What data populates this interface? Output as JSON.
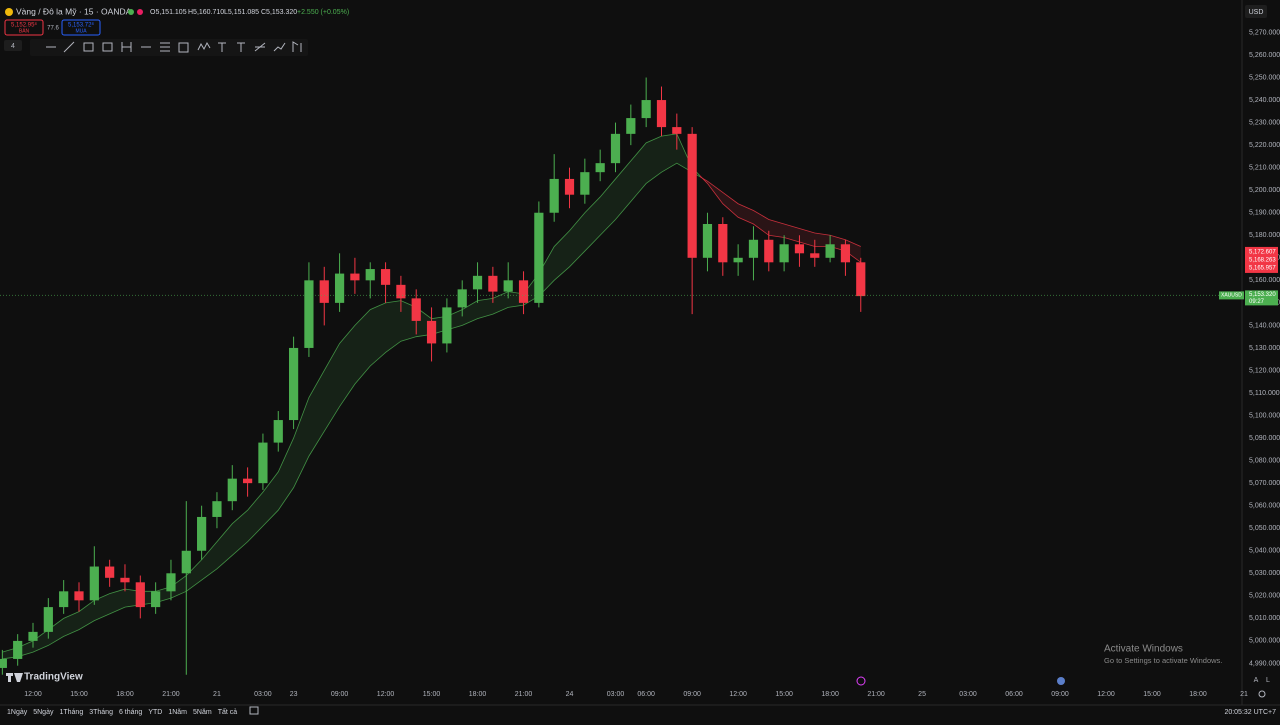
{
  "header": {
    "symbol": "Vàng / Đô la Mỹ · 15 · OANDA",
    "open": "O5,151.105",
    "high": "H5,160.710",
    "low": "L5,151.085",
    "close": "C5,153.320",
    "change": "+2.550 (+0.05%)",
    "sell_price": "5,152.95⁸",
    "sell_label": "BÁN",
    "spread": "77.6",
    "buy_price": "5,153.72⁸",
    "buy_label": "MUA",
    "indicators_count": "4",
    "currency": "USD"
  },
  "chart_data": {
    "type": "candlestick",
    "up_color": "#4caf50",
    "down_color": "#f23645",
    "band_up_color": "#4caf50",
    "band_down_color": "#f23645",
    "x": [
      -2,
      -1,
      0,
      1,
      2,
      3,
      4,
      5,
      6,
      7,
      8,
      9,
      10,
      11,
      12,
      13,
      14,
      15,
      16,
      17,
      18,
      19,
      20,
      21,
      22,
      23,
      24,
      25,
      26,
      27,
      28,
      29,
      30,
      31,
      32,
      33,
      34,
      35,
      36,
      37,
      38,
      39,
      40,
      41,
      42,
      43,
      44,
      45,
      46,
      47,
      48,
      49,
      50,
      51,
      52,
      53,
      54
    ],
    "candles": [
      [
        4988,
        4996,
        4985,
        4992
      ],
      [
        4992,
        5003,
        4989,
        5000
      ],
      [
        5000,
        5008,
        4997,
        5004
      ],
      [
        5004,
        5019,
        5001,
        5015
      ],
      [
        5015,
        5027,
        5012,
        5022
      ],
      [
        5022,
        5026,
        5013,
        5018
      ],
      [
        5018,
        5042,
        5016,
        5033
      ],
      [
        5033,
        5036,
        5024,
        5028
      ],
      [
        5028,
        5034,
        5022,
        5026
      ],
      [
        5026,
        5029,
        5010,
        5015
      ],
      [
        5015,
        5026,
        5012,
        5022
      ],
      [
        5022,
        5036,
        5018,
        5030
      ],
      [
        5030,
        5062,
        4985,
        5040
      ],
      [
        5040,
        5060,
        5036,
        5055
      ],
      [
        5055,
        5066,
        5050,
        5062
      ],
      [
        5062,
        5078,
        5058,
        5072
      ],
      [
        5072,
        5077,
        5064,
        5070
      ],
      [
        5070,
        5092,
        5067,
        5088
      ],
      [
        5088,
        5102,
        5084,
        5098
      ],
      [
        5098,
        5135,
        5094,
        5130
      ],
      [
        5130,
        5168,
        5126,
        5160
      ],
      [
        5160,
        5166,
        5140,
        5150
      ],
      [
        5150,
        5172,
        5146,
        5163
      ],
      [
        5163,
        5170,
        5154,
        5160
      ],
      [
        5160,
        5168,
        5152,
        5165
      ],
      [
        5165,
        5168,
        5150,
        5158
      ],
      [
        5158,
        5162,
        5146,
        5152
      ],
      [
        5152,
        5156,
        5136,
        5142
      ],
      [
        5142,
        5148,
        5124,
        5132
      ],
      [
        5132,
        5152,
        5128,
        5148
      ],
      [
        5148,
        5160,
        5144,
        5156
      ],
      [
        5156,
        5168,
        5150,
        5162
      ],
      [
        5162,
        5166,
        5150,
        5155
      ],
      [
        5155,
        5168,
        5152,
        5160
      ],
      [
        5160,
        5164,
        5145,
        5150
      ],
      [
        5150,
        5195,
        5148,
        5190
      ],
      [
        5190,
        5216,
        5186,
        5205
      ],
      [
        5205,
        5210,
        5192,
        5198
      ],
      [
        5198,
        5214,
        5194,
        5208
      ],
      [
        5208,
        5218,
        5204,
        5212
      ],
      [
        5212,
        5230,
        5208,
        5225
      ],
      [
        5225,
        5238,
        5220,
        5232
      ],
      [
        5232,
        5250,
        5228,
        5240
      ],
      [
        5240,
        5246,
        5224,
        5228
      ],
      [
        5228,
        5234,
        5218,
        5225
      ],
      [
        5225,
        5228,
        5145,
        5170
      ],
      [
        5170,
        5190,
        5164,
        5185
      ],
      [
        5185,
        5188,
        5162,
        5168
      ],
      [
        5168,
        5176,
        5162,
        5170
      ],
      [
        5170,
        5184,
        5160,
        5178
      ],
      [
        5178,
        5182,
        5164,
        5168
      ],
      [
        5168,
        5180,
        5164,
        5176
      ],
      [
        5176,
        5180,
        5166,
        5172
      ],
      [
        5172,
        5178,
        5166,
        5170
      ],
      [
        5170,
        5180,
        5168,
        5176
      ],
      [
        5176,
        5178,
        5162,
        5168
      ],
      [
        5168,
        5170,
        5146,
        5153
      ]
    ],
    "ema_fast": [
      4995,
      4997,
      5000,
      5005,
      5010,
      5013,
      5018,
      5021,
      5023,
      5022,
      5022,
      5024,
      5029,
      5036,
      5044,
      5052,
      5058,
      5066,
      5075,
      5090,
      5108,
      5120,
      5132,
      5140,
      5147,
      5150,
      5151,
      5148,
      5143,
      5144,
      5147,
      5151,
      5152,
      5155,
      5154,
      5163,
      5175,
      5182,
      5190,
      5197,
      5205,
      5213,
      5221,
      5224,
      5225,
      5210,
      5203,
      5194,
      5188,
      5185,
      5180,
      5179,
      5177,
      5175,
      5175,
      5173,
      5168
    ],
    "ema_slow": [
      4992,
      4993,
      4995,
      4998,
      5002,
      5005,
      5009,
      5012,
      5015,
      5016,
      5017,
      5019,
      5022,
      5027,
      5032,
      5038,
      5044,
      5051,
      5058,
      5068,
      5082,
      5093,
      5104,
      5114,
      5122,
      5128,
      5133,
      5135,
      5136,
      5138,
      5140,
      5143,
      5145,
      5148,
      5149,
      5153,
      5160,
      5166,
      5173,
      5180,
      5187,
      5195,
      5203,
      5208,
      5212,
      5208,
      5204,
      5199,
      5194,
      5191,
      5187,
      5185,
      5183,
      5181,
      5180,
      5178,
      5175
    ],
    "xlim": [
      -2.153,
      78.74
    ],
    "ylim": [
      4986.2,
      5277.3
    ],
    "xticks": [
      {
        "value": 0,
        "label": "12:00"
      },
      {
        "value": 3,
        "label": "15:00"
      },
      {
        "value": 6,
        "label": "18:00"
      },
      {
        "value": 9,
        "label": "21:00"
      },
      {
        "value": 12,
        "label": "21"
      },
      {
        "value": 15,
        "label": "03:00"
      },
      {
        "value": 17,
        "label": "23"
      },
      {
        "value": 20,
        "label": "09:00"
      },
      {
        "value": 23,
        "label": "12:00"
      },
      {
        "value": 26,
        "label": "15:00"
      },
      {
        "value": 29,
        "label": "18:00"
      },
      {
        "value": 32,
        "label": "21:00"
      },
      {
        "value": 35,
        "label": "24"
      },
      {
        "value": 38,
        "label": "03:00"
      },
      {
        "value": 40,
        "label": "06:00"
      },
      {
        "value": 43,
        "label": "09:00"
      },
      {
        "value": 46,
        "label": "12:00"
      },
      {
        "value": 49,
        "label": "15:00"
      },
      {
        "value": 52,
        "label": "18:00"
      },
      {
        "value": 55,
        "label": "21:00"
      },
      {
        "value": 58,
        "label": "25"
      },
      {
        "value": 61,
        "label": "03:00"
      },
      {
        "value": 64,
        "label": "06:00"
      },
      {
        "value": 67,
        "label": "09:00"
      },
      {
        "value": 70,
        "label": "12:00"
      },
      {
        "value": 73,
        "label": "15:00"
      },
      {
        "value": 76,
        "label": "18:00"
      },
      {
        "value": 79,
        "label": "21"
      }
    ],
    "yticks": [
      {
        "value": 5270,
        "label": "5,270.000"
      },
      {
        "value": 5260,
        "label": "5,260.000"
      },
      {
        "value": 5250,
        "label": "5,250.000"
      },
      {
        "value": 5240,
        "label": "5,240.000"
      },
      {
        "value": 5230,
        "label": "5,230.000"
      },
      {
        "value": 5220,
        "label": "5,220.000"
      },
      {
        "value": 5210,
        "label": "5,210.000"
      },
      {
        "value": 5200,
        "label": "5,200.000"
      },
      {
        "value": 5190,
        "label": "5,190.000"
      },
      {
        "value": 5180,
        "label": "5,180.000"
      },
      {
        "value": 5170,
        "label": "5,170.000"
      },
      {
        "value": 5160,
        "label": "5,160.000"
      },
      {
        "value": 5150,
        "label": "5,150.000"
      },
      {
        "value": 5140,
        "label": "5,140.000"
      },
      {
        "value": 5130,
        "label": "5,130.000"
      },
      {
        "value": 5120,
        "label": "5,120.000"
      },
      {
        "value": 5110,
        "label": "5,110.000"
      },
      {
        "value": 5100,
        "label": "5,100.000"
      },
      {
        "value": 5090,
        "label": "5,090.000"
      },
      {
        "value": 5080,
        "label": "5,080.000"
      },
      {
        "value": 5070,
        "label": "5,070.000"
      },
      {
        "value": 5060,
        "label": "5,060.000"
      },
      {
        "value": 5050,
        "label": "5,050.000"
      },
      {
        "value": 5040,
        "label": "5,040.000"
      },
      {
        "value": 5030,
        "label": "5,030.000"
      },
      {
        "value": 5020,
        "label": "5,020.000"
      },
      {
        "value": 5010,
        "label": "5,010.000"
      },
      {
        "value": 5000,
        "label": "5,000.000"
      },
      {
        "value": 4990,
        "label": "4,990.000"
      }
    ],
    "ema_tags": [
      {
        "value": 5172.607,
        "label": "5,172.607"
      },
      {
        "value": 5168.263,
        "label": "5,168.263"
      },
      {
        "value": 5165.957,
        "label": "5,165.957"
      }
    ],
    "last": {
      "value": 5153.32,
      "label": "5,153.320",
      "symbol": "XAUUSD",
      "countdown": "09:27"
    }
  },
  "footer": {
    "ranges": [
      "1Ngày",
      "5Ngày",
      "1Tháng",
      "3Tháng",
      "6 tháng",
      "YTD",
      "1Năm",
      "5Năm",
      "Tất cả"
    ],
    "clock": "20:05:32 UTC+7",
    "auto": "A",
    "log": "L",
    "logo": "TradingView"
  },
  "watermark": {
    "title": "Activate Windows",
    "subtitle": "Go to Settings to activate Windows."
  }
}
